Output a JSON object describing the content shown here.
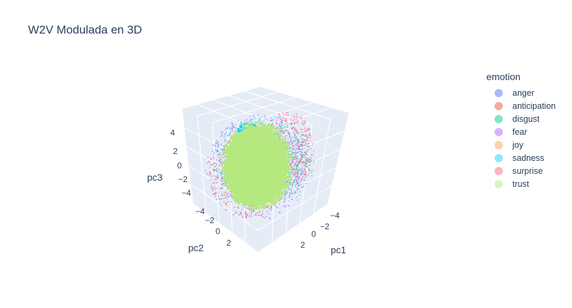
{
  "chart_data": {
    "type": "scatter",
    "title": "W2V Modulada en 3D",
    "legend_title": "emotion",
    "legend_position": "right",
    "axes": {
      "x": {
        "label": "pc1",
        "ticks": [
          "−4",
          "−2",
          "0",
          "2"
        ]
      },
      "y": {
        "label": "pc2",
        "ticks": [
          "−4",
          "−2",
          "0",
          "2"
        ]
      },
      "z": {
        "label": "pc3",
        "ticks": [
          "4",
          "2",
          "0",
          "−2",
          "−4"
        ]
      }
    },
    "series": [
      {
        "name": "anger",
        "color": "#636efa"
      },
      {
        "name": "anticipation",
        "color": "#ef553b"
      },
      {
        "name": "disgust",
        "color": "#00cc96"
      },
      {
        "name": "fear",
        "color": "#ab63fa"
      },
      {
        "name": "joy",
        "color": "#ffa15a"
      },
      {
        "name": "sadness",
        "color": "#19d3f3"
      },
      {
        "name": "surprise",
        "color": "#ff6692"
      },
      {
        "name": "trust",
        "color": "#b6e880"
      }
    ]
  }
}
